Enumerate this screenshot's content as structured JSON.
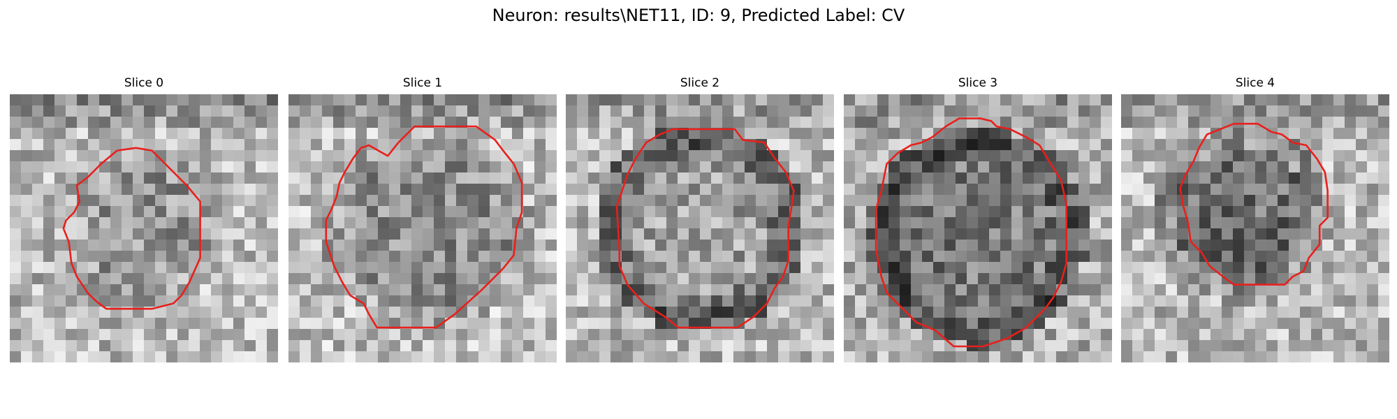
{
  "figure": {
    "title": "Neuron: results\\NET11, ID: 9, Predicted Label: CV"
  },
  "colors": {
    "contour": "#e8201c",
    "background": "#ffffff",
    "text": "#000000"
  },
  "panels": [
    {
      "title": "Slice 0"
    },
    {
      "title": "Slice 1"
    },
    {
      "title": "Slice 2"
    },
    {
      "title": "Slice 3"
    },
    {
      "title": "Slice 4"
    }
  ]
}
